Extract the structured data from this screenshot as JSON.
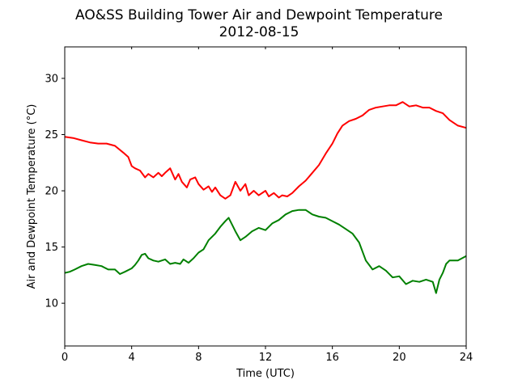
{
  "chart_data": {
    "type": "line",
    "title": "AO&SS Building Tower Air and Dewpoint Temperature",
    "subtitle": "2012-08-15",
    "xlabel": "Time (UTC)",
    "ylabel": "Air and Dewpoint Temperature (°C)",
    "xlim": [
      0,
      24
    ],
    "ylim": [
      6.2,
      32.8
    ],
    "xticks": [
      0,
      4,
      8,
      12,
      16,
      20,
      24
    ],
    "yticks": [
      10,
      15,
      20,
      25,
      30
    ],
    "grid": false,
    "legend": "none",
    "series": [
      {
        "color": "#ff0000",
        "x": [
          0,
          0.5,
          1,
          1.5,
          2,
          2.5,
          3,
          3.5,
          3.8,
          4,
          4.2,
          4.5,
          4.8,
          5,
          5.3,
          5.6,
          5.8,
          6,
          6.3,
          6.6,
          6.8,
          7,
          7.3,
          7.5,
          7.8,
          8,
          8.3,
          8.6,
          8.8,
          9,
          9.3,
          9.6,
          9.9,
          10.2,
          10.5,
          10.8,
          11,
          11.3,
          11.6,
          12,
          12.2,
          12.5,
          12.8,
          13,
          13.3,
          13.6,
          14,
          14.4,
          14.8,
          15.2,
          15.6,
          16,
          16.3,
          16.6,
          17,
          17.4,
          17.8,
          18.2,
          18.6,
          19,
          19.4,
          19.8,
          20.2,
          20.6,
          21,
          21.4,
          21.8,
          22.2,
          22.6,
          23,
          23.5,
          24
        ],
        "y": [
          24.8,
          24.7,
          24.5,
          24.3,
          24.2,
          24.2,
          24.0,
          23.4,
          23.0,
          22.2,
          22.0,
          21.8,
          21.2,
          21.5,
          21.2,
          21.6,
          21.3,
          21.6,
          22.0,
          21.0,
          21.5,
          20.8,
          20.3,
          21.0,
          21.2,
          20.6,
          20.1,
          20.4,
          19.9,
          20.3,
          19.6,
          19.3,
          19.6,
          20.8,
          20.0,
          20.6,
          19.6,
          20.0,
          19.6,
          20.0,
          19.5,
          19.8,
          19.4,
          19.6,
          19.5,
          19.8,
          20.4,
          20.9,
          21.6,
          22.3,
          23.3,
          24.2,
          25.1,
          25.8,
          26.2,
          26.4,
          26.7,
          27.2,
          27.4,
          27.5,
          27.6,
          27.6,
          27.9,
          27.5,
          27.6,
          27.4,
          27.4,
          27.1,
          26.9,
          26.3,
          25.8,
          25.6
        ]
      },
      {
        "color": "#008000",
        "x": [
          0,
          0.3,
          0.6,
          1,
          1.4,
          1.8,
          2.2,
          2.6,
          3,
          3.3,
          3.6,
          4,
          4.2,
          4.4,
          4.6,
          4.8,
          5,
          5.3,
          5.6,
          6,
          6.3,
          6.6,
          6.9,
          7.1,
          7.4,
          7.7,
          8,
          8.3,
          8.6,
          9,
          9.3,
          9.6,
          9.8,
          10,
          10.2,
          10.5,
          10.8,
          11.2,
          11.6,
          12,
          12.4,
          12.8,
          13.2,
          13.6,
          14,
          14.4,
          14.8,
          15.2,
          15.6,
          16,
          16.4,
          16.8,
          17.2,
          17.6,
          18,
          18.4,
          18.8,
          19.2,
          19.6,
          20,
          20.4,
          20.8,
          21.2,
          21.6,
          22,
          22.2,
          22.4,
          22.6,
          22.8,
          23,
          23.5,
          24
        ],
        "y": [
          12.7,
          12.8,
          13.0,
          13.3,
          13.5,
          13.4,
          13.3,
          13.0,
          13.0,
          12.6,
          12.8,
          13.1,
          13.4,
          13.8,
          14.3,
          14.4,
          14.0,
          13.8,
          13.7,
          13.9,
          13.5,
          13.6,
          13.5,
          13.9,
          13.6,
          14.0,
          14.5,
          14.8,
          15.6,
          16.2,
          16.8,
          17.3,
          17.6,
          17.0,
          16.4,
          15.6,
          15.9,
          16.4,
          16.7,
          16.5,
          17.1,
          17.4,
          17.9,
          18.2,
          18.3,
          18.3,
          17.9,
          17.7,
          17.6,
          17.3,
          17.0,
          16.6,
          16.2,
          15.4,
          13.8,
          13.0,
          13.3,
          12.9,
          12.3,
          12.4,
          11.7,
          12.0,
          11.9,
          12.1,
          11.9,
          10.9,
          12.1,
          12.7,
          13.5,
          13.8,
          13.8,
          14.2
        ]
      }
    ]
  }
}
